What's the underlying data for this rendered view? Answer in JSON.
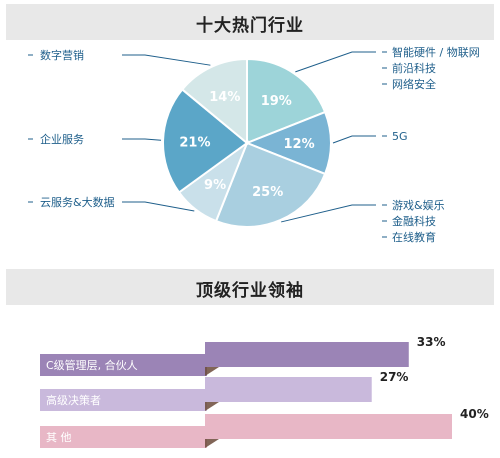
{
  "pie_section": {
    "title": "十大热门行业"
  },
  "bar_section": {
    "title": "顶级行业领袖"
  },
  "chart_data": [
    {
      "type": "pie",
      "title": "十大热门行业",
      "slices": [
        {
          "pct_label": "19%",
          "value": 19,
          "color": "#9dd4d9",
          "labels": [
            "智能硬件 / 物联网",
            "前沿科技",
            "网络安全"
          ]
        },
        {
          "pct_label": "12%",
          "value": 12,
          "color": "#7ab4d4",
          "labels": [
            "5G"
          ]
        },
        {
          "pct_label": "25%",
          "value": 25,
          "color": "#a9cfe0",
          "labels": [
            "游戏&娱乐",
            "金融科技",
            "在线教育"
          ]
        },
        {
          "pct_label": "9%",
          "value": 9,
          "color": "#c9e0ea",
          "labels": [
            "云服务&大数据"
          ]
        },
        {
          "pct_label": "21%",
          "value": 21,
          "color": "#5ba6c8",
          "labels": [
            "企业服务"
          ]
        },
        {
          "pct_label": "14%",
          "value": 14,
          "color": "#d4e7e8",
          "labels": [
            "数字营销"
          ]
        }
      ]
    },
    {
      "type": "bar",
      "title": "顶级行业领袖",
      "categories": [
        "C级管理层, 合伙人",
        "高级决策者",
        "其  他"
      ],
      "values": [
        33,
        27,
        40
      ],
      "value_labels": [
        "33%",
        "27%",
        "40%"
      ],
      "colors": [
        "#9b84b6",
        "#c9b9dc",
        "#e8b7c6"
      ]
    }
  ]
}
